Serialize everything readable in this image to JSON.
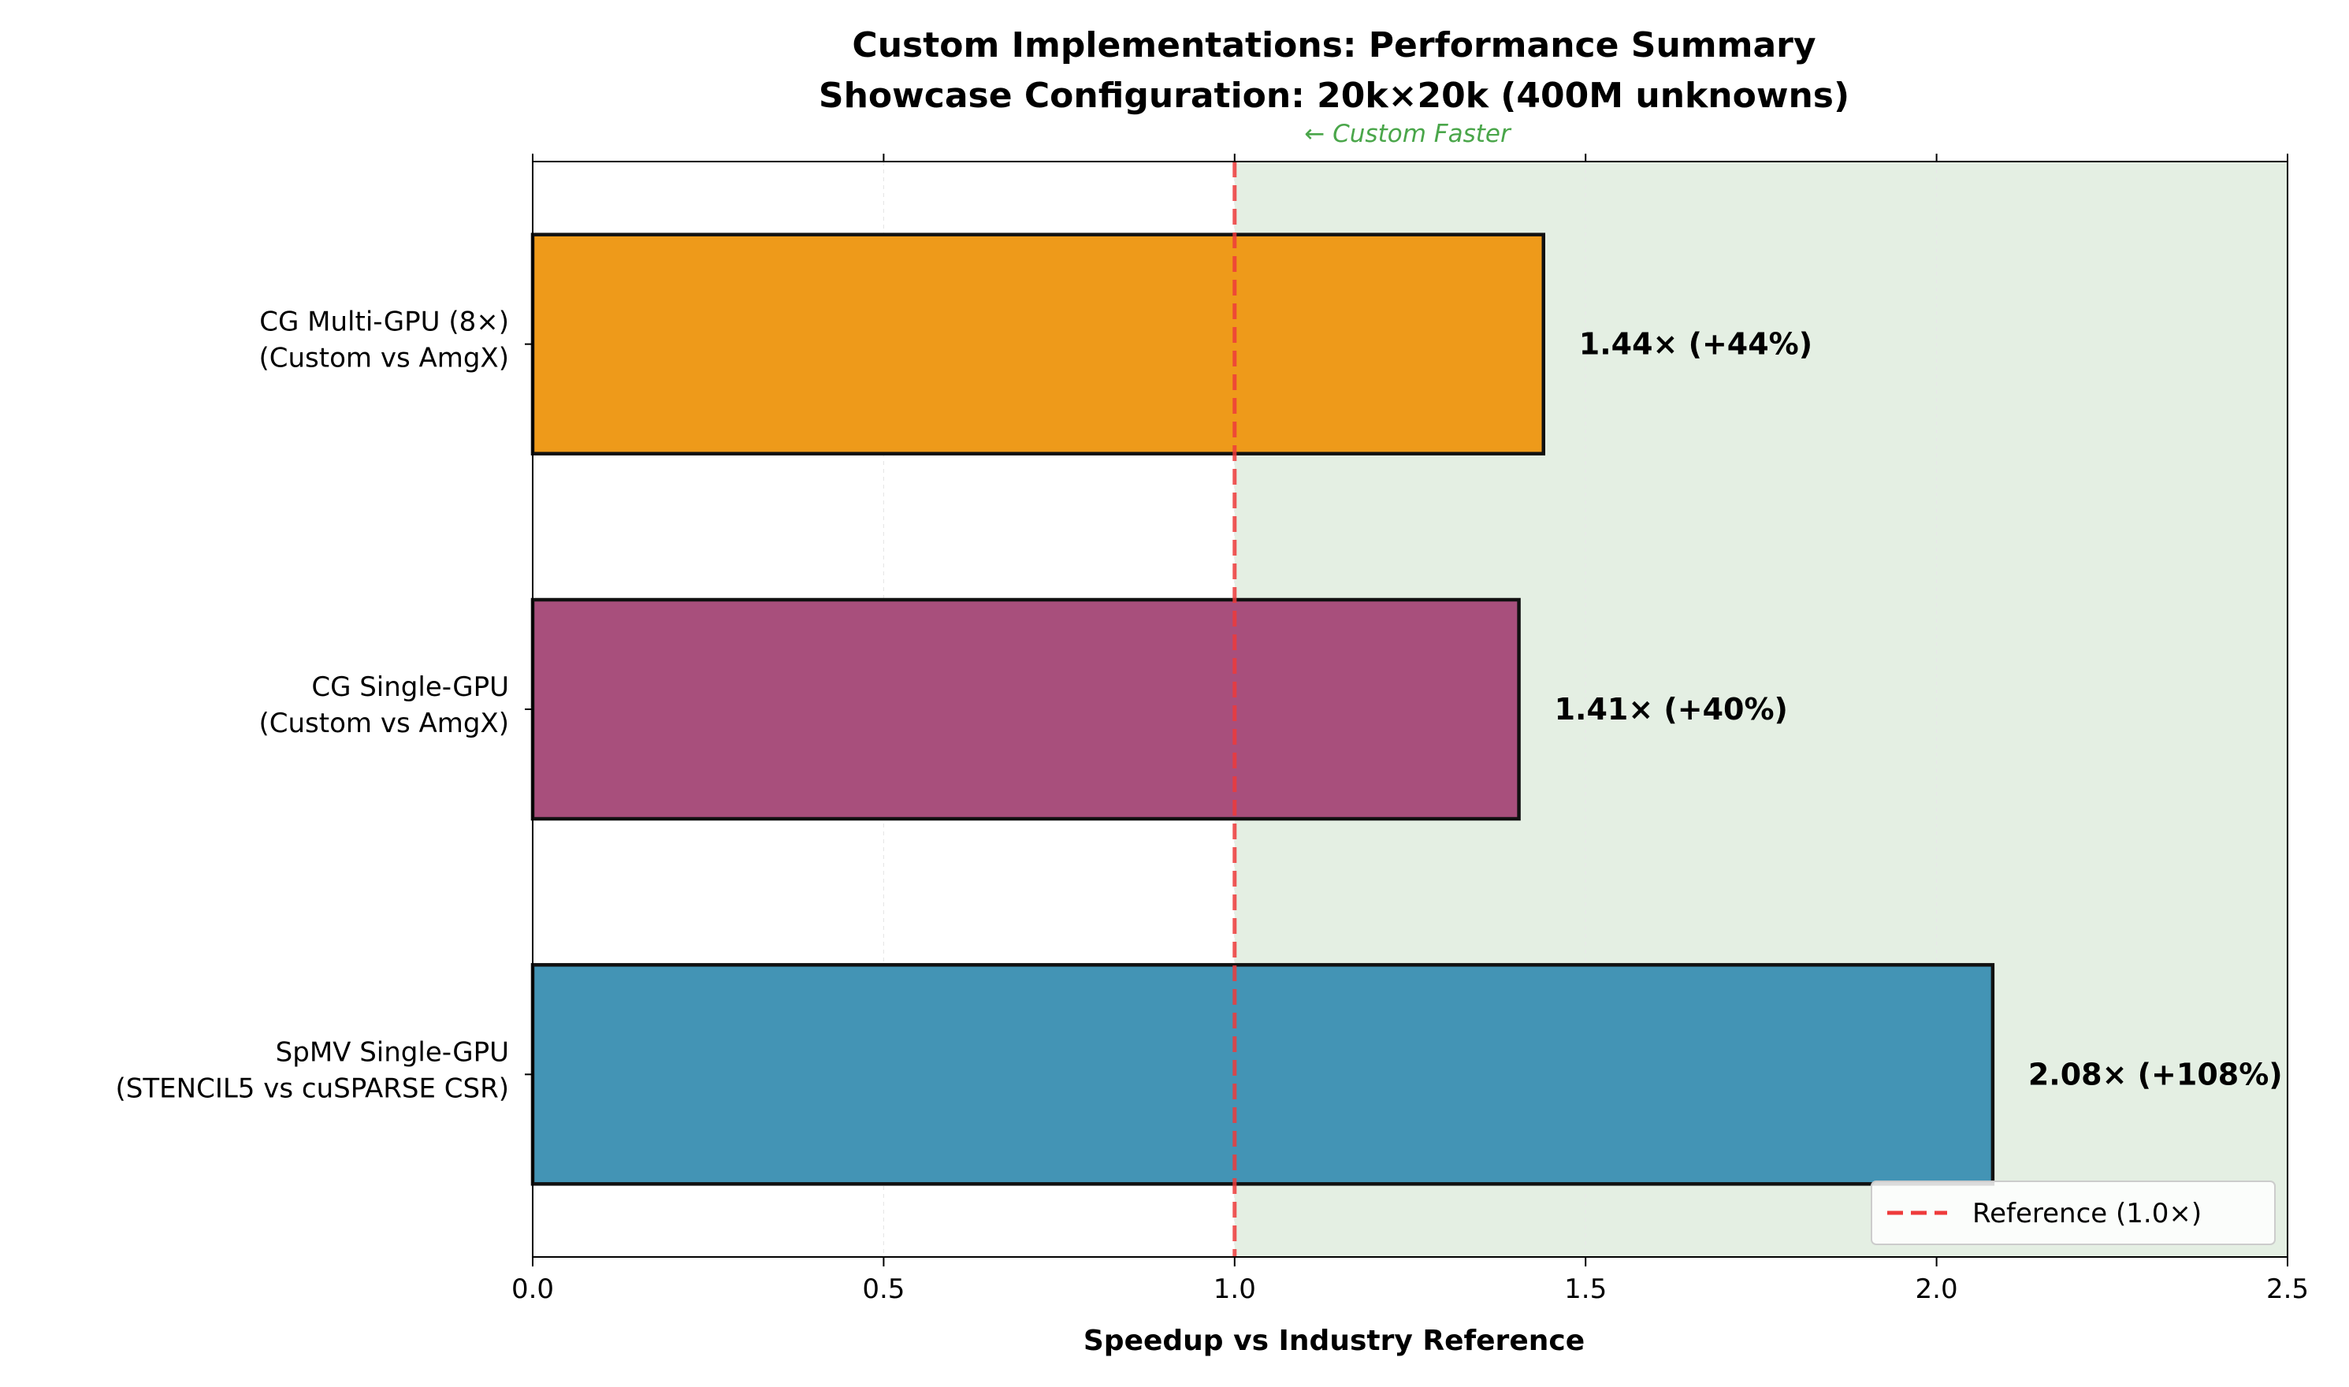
{
  "chart_data": {
    "type": "bar",
    "orientation": "horizontal",
    "title": "Custom Implementations: Performance Summary",
    "subtitle": "Showcase Configuration: 20k×20k (400M unknowns)",
    "xlabel": "Speedup vs Industry Reference",
    "ylabel": "",
    "xlim": [
      0.0,
      2.5
    ],
    "xticks": [
      0.0,
      0.5,
      1.0,
      1.5,
      2.0,
      2.5
    ],
    "xtick_labels": [
      "0.0",
      "0.5",
      "1.0",
      "1.5",
      "2.0",
      "2.5"
    ],
    "grid": false,
    "categories": [
      [
        "CG Multi-GPU (8×)",
        "(Custom vs AmgX)"
      ],
      [
        "CG Single-GPU",
        "(Custom vs AmgX)"
      ],
      [
        "SpMV Single-GPU",
        "(STENCIL5 vs cuSPARSE CSR)"
      ]
    ],
    "values": [
      1.44,
      1.405,
      2.08
    ],
    "data_labels": [
      "1.44× (+44%)",
      "1.41× (+40%)",
      "2.08× (+108%)"
    ],
    "bar_colors": [
      "#ee9a1a",
      "#a84f7c",
      "#4394b5"
    ],
    "reference": {
      "value": 1.0,
      "label": "Reference (1.0×)",
      "color": "#ee3b3b"
    },
    "shaded_region": {
      "from": 1.0,
      "to": 2.5,
      "color": "#e4efe3",
      "annotation": "← Custom Faster",
      "annotation_color": "#4aa64a"
    },
    "legend_position": "bottom-right"
  }
}
